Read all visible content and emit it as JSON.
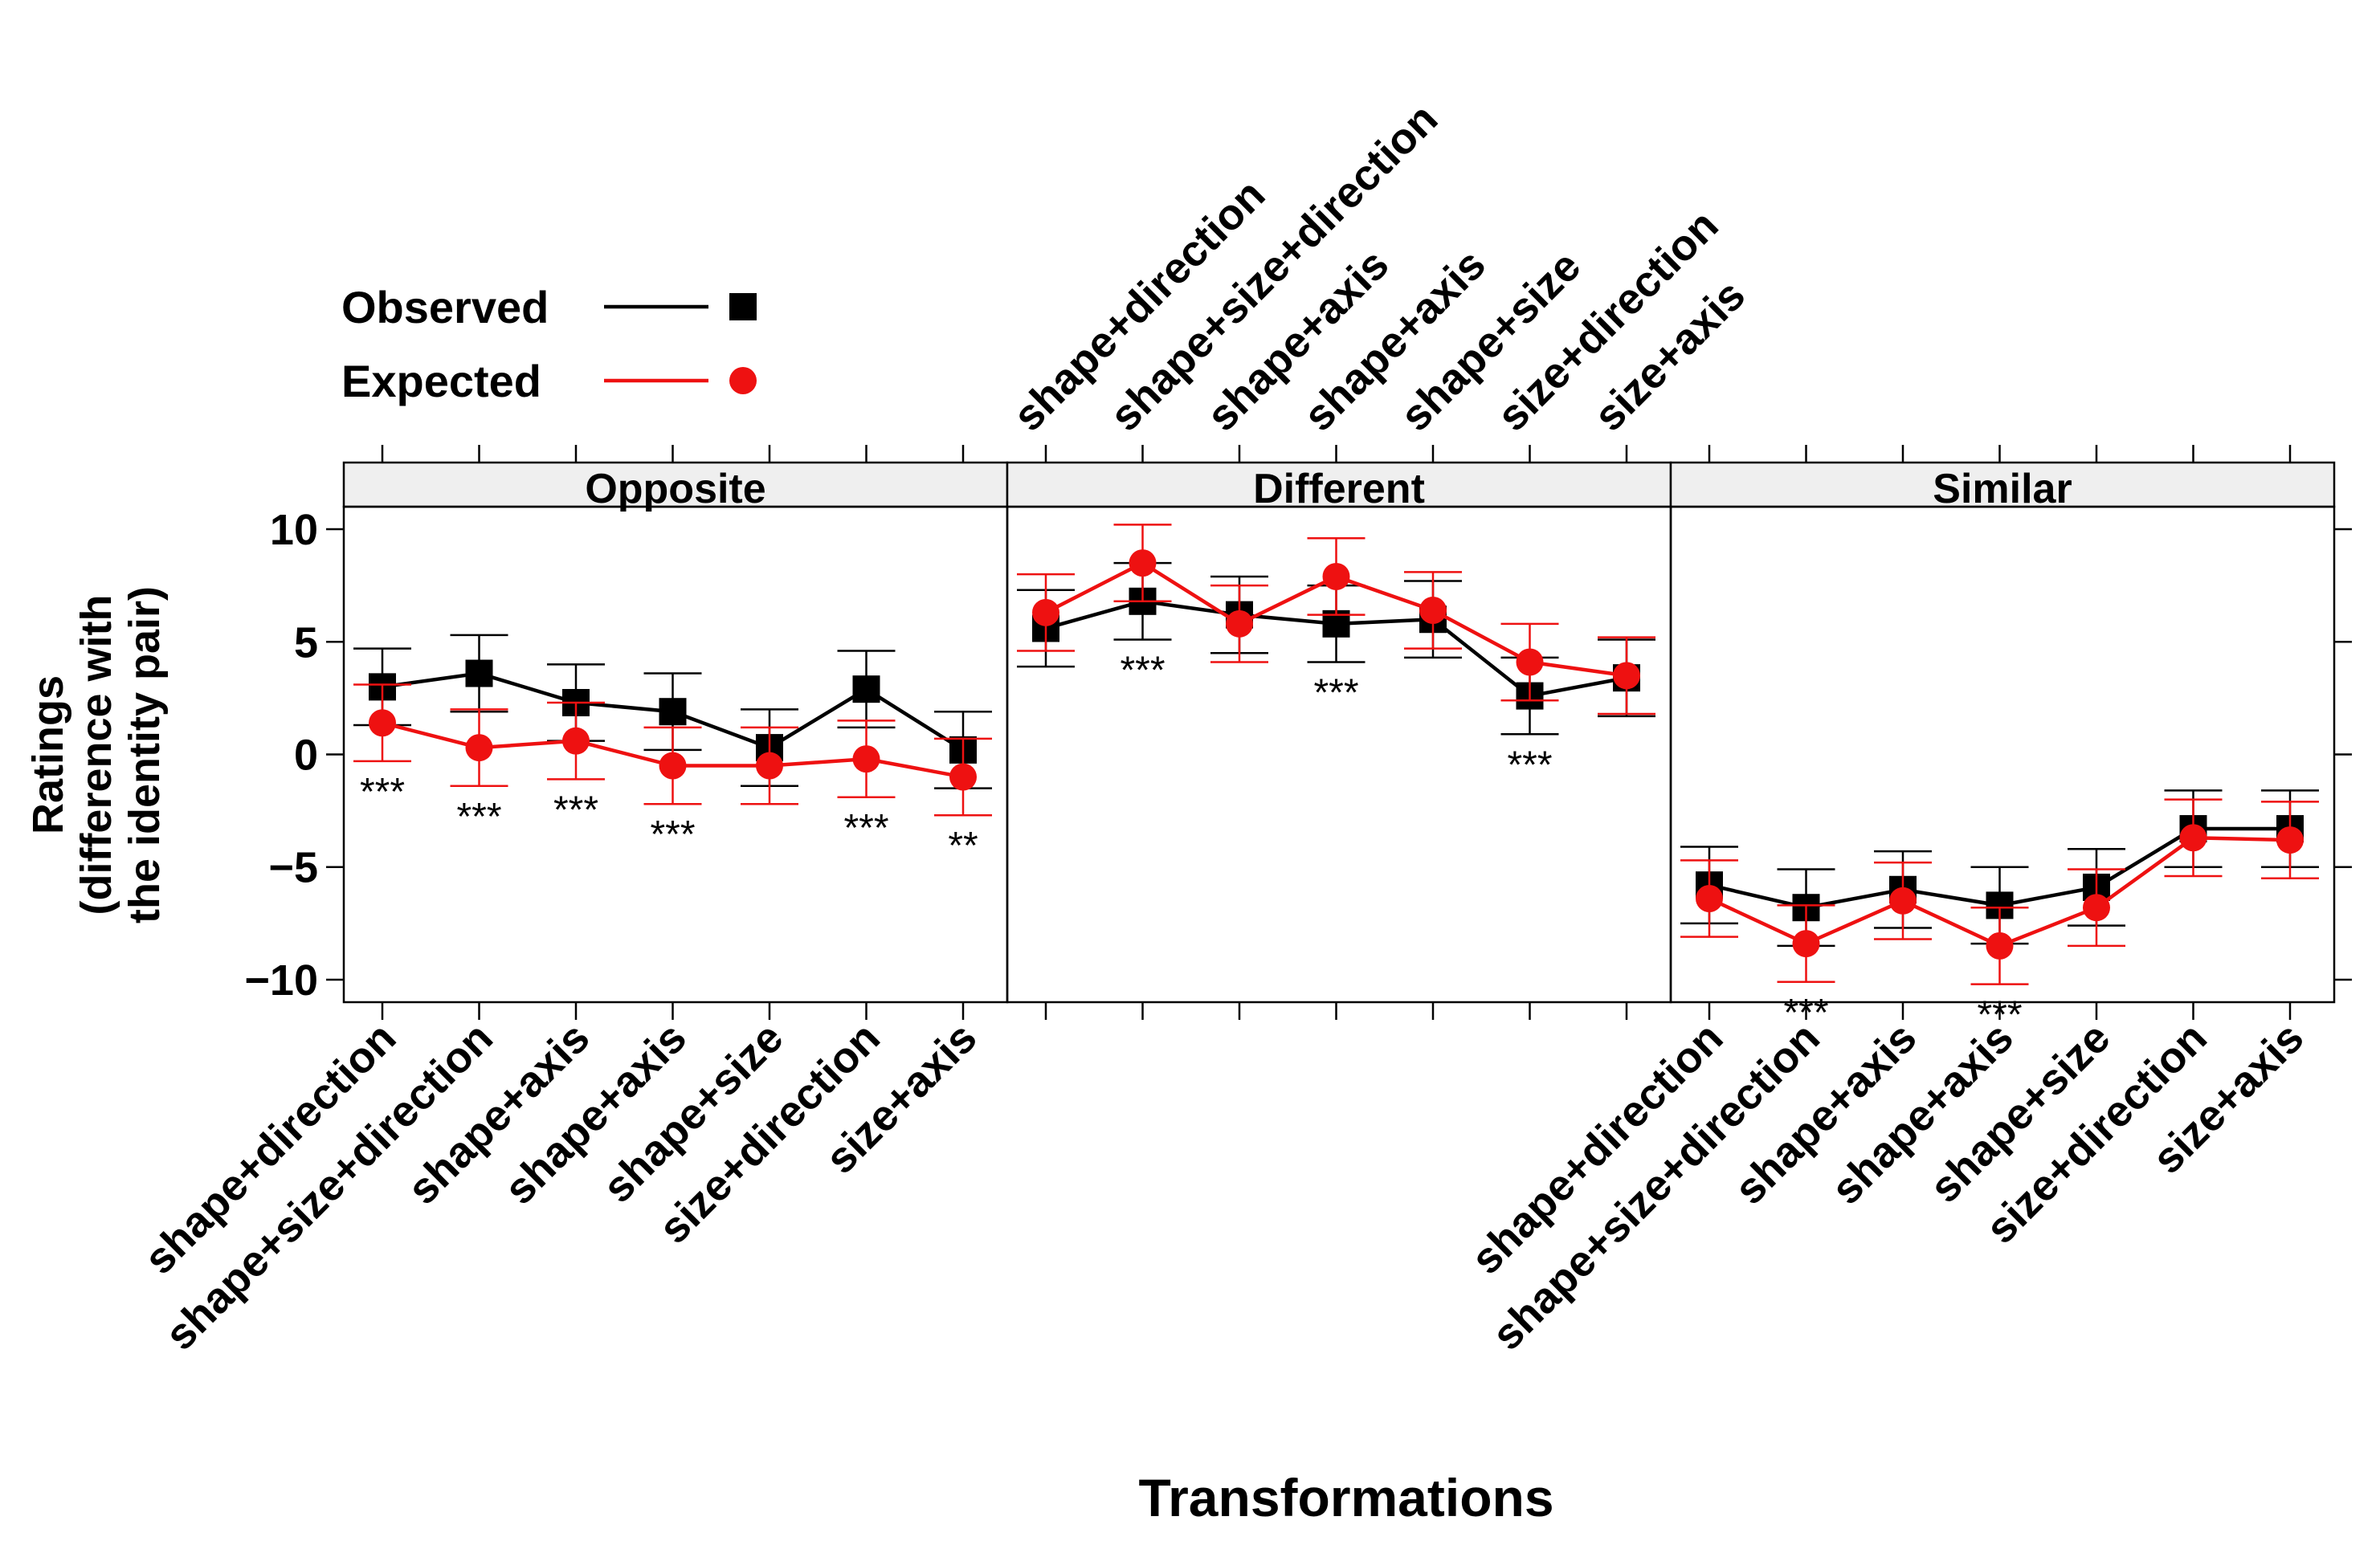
{
  "chart_data": {
    "type": "line",
    "xlabel": "Transformations",
    "ylabel_lines": [
      "Ratings",
      "(difference with",
      "the identity pair)"
    ],
    "ylim": [
      -11,
      11
    ],
    "yticks": [
      "10",
      "5",
      "0",
      "−5",
      "−10"
    ],
    "ytick_values": [
      10,
      5,
      0,
      -5,
      -10
    ],
    "categories": [
      "shape+direction",
      "shape+size+direction",
      "shape+axis",
      "shape+axis",
      "shape+size",
      "size+direction",
      "size+axis"
    ],
    "legend": [
      {
        "name": "Observed",
        "color": "#000000",
        "marker": "square"
      },
      {
        "name": "Expected",
        "color": "#ee1111",
        "marker": "circle"
      }
    ],
    "panels": [
      {
        "title": "Opposite",
        "observed": {
          "y": [
            3.0,
            3.6,
            2.3,
            1.9,
            0.3,
            2.9,
            0.2
          ],
          "lo": [
            1.3,
            1.9,
            0.6,
            0.2,
            -1.4,
            1.2,
            -1.5
          ],
          "hi": [
            4.7,
            5.3,
            4.0,
            3.6,
            2.0,
            4.6,
            1.9
          ]
        },
        "expected": {
          "y": [
            1.4,
            0.3,
            0.6,
            -0.5,
            -0.5,
            -0.2,
            -1.0
          ],
          "lo": [
            -0.3,
            -1.4,
            -1.1,
            -2.2,
            -2.2,
            -1.9,
            -2.7
          ],
          "hi": [
            3.1,
            2.0,
            2.3,
            1.2,
            1.2,
            1.5,
            0.7
          ]
        },
        "sig": [
          "***",
          "***",
          "***",
          "***",
          "",
          "***",
          "**"
        ]
      },
      {
        "title": "Different",
        "observed": {
          "y": [
            5.6,
            6.8,
            6.2,
            5.8,
            6.0,
            2.6,
            3.4
          ],
          "lo": [
            3.9,
            5.1,
            4.5,
            4.1,
            4.3,
            0.9,
            1.7
          ],
          "hi": [
            7.3,
            8.5,
            7.9,
            7.5,
            7.7,
            4.3,
            5.1
          ]
        },
        "expected": {
          "y": [
            6.3,
            8.5,
            5.8,
            7.9,
            6.4,
            4.1,
            3.5
          ],
          "lo": [
            4.6,
            6.8,
            4.1,
            6.2,
            4.7,
            2.4,
            1.8
          ],
          "hi": [
            8.0,
            10.2,
            7.5,
            9.6,
            8.1,
            5.8,
            5.2
          ]
        },
        "sig": [
          "",
          "***",
          "",
          "***",
          "",
          "***",
          ""
        ]
      },
      {
        "title": "Similar",
        "observed": {
          "y": [
            -5.8,
            -6.8,
            -6.0,
            -6.7,
            -5.9,
            -3.3,
            -3.3
          ],
          "lo": [
            -7.5,
            -8.5,
            -7.7,
            -8.4,
            -7.6,
            -5.0,
            -5.0
          ],
          "hi": [
            -4.1,
            -5.1,
            -4.3,
            -5.0,
            -4.2,
            -1.6,
            -1.6
          ]
        },
        "expected": {
          "y": [
            -6.4,
            -8.4,
            -6.5,
            -8.5,
            -6.8,
            -3.7,
            -3.8
          ],
          "lo": [
            -8.1,
            -10.1,
            -8.2,
            -10.2,
            -8.5,
            -5.4,
            -5.5
          ],
          "hi": [
            -4.7,
            -6.7,
            -4.8,
            -6.8,
            -5.1,
            -2.0,
            -2.1
          ]
        },
        "sig": [
          "",
          "***",
          "",
          "***",
          "",
          "",
          ""
        ]
      }
    ]
  }
}
